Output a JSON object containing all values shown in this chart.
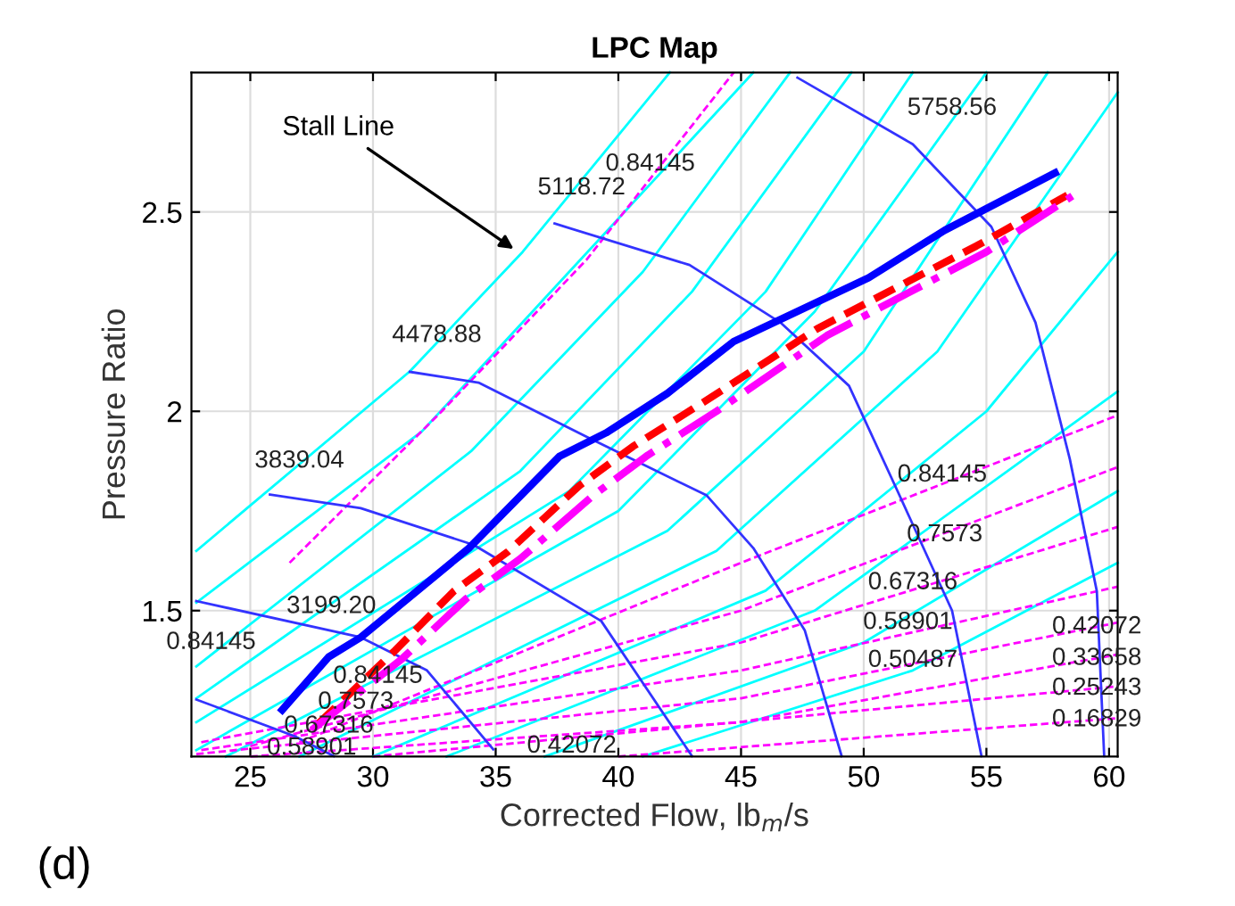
{
  "chart_data": {
    "type": "line",
    "title": "LPC Map",
    "xlabel": "Corrected Flow, lb$_{m}$/s",
    "ylabel": "Pressure Ratio",
    "xlim": [
      22.6,
      60.35
    ],
    "ylim": [
      1.134,
      2.85
    ],
    "xticks": [
      25,
      30,
      35,
      40,
      45,
      50,
      55,
      60
    ],
    "yticks": [
      1.5,
      2,
      2.5
    ],
    "grid": true,
    "legend": false,
    "series": [
      {
        "color": "#00ffff",
        "line_style": "solid",
        "x": [
          22.8,
          31.5,
          36.1,
          42.1
        ],
        "values": [
          1.65,
          2.1,
          2.4,
          2.85
        ]
      },
      {
        "color": "#00ffff",
        "line_style": "solid",
        "x": [
          22.8,
          32,
          38,
          45.5
        ],
        "values": [
          1.52,
          1.95,
          2.35,
          2.85
        ]
      },
      {
        "color": "#00ffff",
        "line_style": "solid",
        "x": [
          22.8,
          34,
          41,
          47
        ],
        "values": [
          1.36,
          1.9,
          2.35,
          2.85
        ]
      },
      {
        "color": "#00ffff",
        "line_style": "solid",
        "x": [
          22.8,
          36,
          43,
          49.5
        ],
        "values": [
          1.28,
          1.85,
          2.3,
          2.85
        ]
      },
      {
        "color": "#00ffff",
        "line_style": "solid",
        "x": [
          22.8,
          38,
          46,
          52
        ],
        "values": [
          1.22,
          1.8,
          2.3,
          2.85
        ]
      },
      {
        "color": "#00ffff",
        "line_style": "solid",
        "x": [
          22.8,
          40,
          48,
          55
        ],
        "values": [
          1.15,
          1.75,
          2.25,
          2.85
        ]
      },
      {
        "color": "#00ffff",
        "line_style": "solid",
        "x": [
          24,
          42,
          50,
          57.5
        ],
        "values": [
          1.134,
          1.7,
          2.15,
          2.85
        ]
      },
      {
        "color": "#00ffff",
        "line_style": "solid",
        "x": [
          27,
          44,
          53,
          60.35
        ],
        "values": [
          1.134,
          1.65,
          2.15,
          2.8
        ]
      },
      {
        "color": "#00ffff",
        "line_style": "solid",
        "x": [
          30,
          46,
          55,
          60.35
        ],
        "values": [
          1.134,
          1.55,
          2.0,
          2.4
        ]
      },
      {
        "color": "#00ffff",
        "line_style": "solid",
        "x": [
          33,
          48,
          60.35
        ],
        "values": [
          1.134,
          1.5,
          2.05
        ]
      },
      {
        "color": "#00ffff",
        "line_style": "solid",
        "x": [
          37,
          50,
          60.35
        ],
        "values": [
          1.134,
          1.42,
          1.8
        ]
      },
      {
        "color": "#00ffff",
        "line_style": "solid",
        "x": [
          41,
          52,
          60.35
        ],
        "values": [
          1.134,
          1.35,
          1.62
        ]
      },
      {
        "color": "#ff00ff",
        "line_style": "dashed",
        "x": [
          26.6,
          32.8,
          38.7,
          44.7
        ],
        "values": [
          1.62,
          2.0,
          2.38,
          2.85
        ]
      },
      {
        "color": "#ff00ff",
        "line_style": "dashed",
        "x": [
          27,
          45,
          60.35
        ],
        "values": [
          1.17,
          1.62,
          1.99
        ]
      },
      {
        "color": "#ff00ff",
        "line_style": "dashed",
        "x": [
          25,
          45,
          60.35
        ],
        "values": [
          1.16,
          1.5,
          1.86
        ]
      },
      {
        "color": "#ff00ff",
        "line_style": "dashed",
        "x": [
          23,
          45,
          60.35
        ],
        "values": [
          1.17,
          1.42,
          1.71
        ]
      },
      {
        "color": "#ff00ff",
        "line_style": "dashed",
        "x": [
          23,
          45,
          60.35
        ],
        "values": [
          1.15,
          1.35,
          1.56
        ]
      },
      {
        "color": "#ff00ff",
        "line_style": "dashed",
        "x": [
          22.8,
          45,
          60.35
        ],
        "values": [
          1.14,
          1.28,
          1.47
        ]
      },
      {
        "color": "#ff00ff",
        "line_style": "dashed",
        "x": [
          25,
          45,
          60.35
        ],
        "values": [
          1.134,
          1.22,
          1.39
        ]
      },
      {
        "color": "#ff00ff",
        "line_style": "dashed",
        "x": [
          30,
          60.35
        ],
        "values": [
          1.134,
          1.31
        ]
      },
      {
        "color": "#ff00ff",
        "line_style": "dashed",
        "x": [
          40,
          60.35
        ],
        "values": [
          1.134,
          1.23
        ]
      },
      {
        "color": "#3333ff",
        "line_style": "solid",
        "x": [
          22.8,
          26.8,
          28.4
        ],
        "values": [
          1.277,
          1.185,
          1.135
        ]
      },
      {
        "color": "#3333ff",
        "line_style": "solid",
        "x": [
          22.8,
          29.5,
          32.2,
          34.9
        ],
        "values": [
          1.524,
          1.433,
          1.35,
          1.152
        ]
      },
      {
        "color": "#3333ff",
        "line_style": "solid",
        "x": [
          25.8,
          29.5,
          34.1,
          39.3,
          43.0
        ],
        "values": [
          1.791,
          1.757,
          1.665,
          1.474,
          1.135
        ]
      },
      {
        "color": "#3333ff",
        "line_style": "solid",
        "x": [
          31.5,
          34.3,
          38.7,
          43.6,
          45.5,
          47.6,
          49.1
        ],
        "values": [
          2.099,
          2.072,
          1.936,
          1.789,
          1.657,
          1.45,
          1.135
        ]
      },
      {
        "color": "#3333ff",
        "line_style": "solid",
        "x": [
          37.4,
          42.9,
          46.6,
          49.4,
          51.4,
          53.6,
          54.8
        ],
        "values": [
          2.471,
          2.367,
          2.223,
          2.064,
          1.797,
          1.5,
          1.135
        ]
      },
      {
        "color": "#3333ff",
        "line_style": "solid",
        "x": [
          47.3,
          52.0,
          55.2,
          57.0,
          58.4,
          59.5,
          59.8
        ],
        "values": [
          2.837,
          2.67,
          2.463,
          2.223,
          1.88,
          1.549,
          1.135
        ]
      },
      {
        "color": "#0000ff",
        "line_style": "solid",
        "x": [
          26.3,
          28.2,
          29.5,
          33.9,
          37.6,
          39.5,
          42.0,
          44.7,
          50.2,
          53.3,
          57.8
        ],
        "values": [
          1.251,
          1.384,
          1.433,
          1.656,
          1.887,
          1.946,
          2.045,
          2.175,
          2.335,
          2.454,
          2.598
        ]
      },
      {
        "color": "#ff0000",
        "line_style": "dashed",
        "x": [
          27.8,
          30.9,
          33.3,
          35.5,
          38.4,
          40.6,
          43.6,
          48.1,
          54.6,
          58.3
        ],
        "values": [
          1.218,
          1.4,
          1.549,
          1.648,
          1.813,
          1.912,
          2.028,
          2.207,
          2.415,
          2.542
        ]
      },
      {
        "color": "#ff00ff",
        "line_style": "dashdot",
        "x": [
          27.5,
          31.2,
          33.8,
          36.0,
          39.0,
          41.2,
          44.0,
          48.5,
          55.0,
          58.5
        ],
        "values": [
          1.2,
          1.38,
          1.53,
          1.63,
          1.79,
          1.89,
          2.0,
          2.19,
          2.4,
          2.54
        ]
      }
    ],
    "annotations": [
      {
        "text": "Stall Line",
        "x": 35.9,
        "y": 2.4
      },
      {
        "text": "5758.56",
        "x": 53.6,
        "y": 2.76
      },
      {
        "text": "5118.72",
        "x": 38.5,
        "y": 2.56
      },
      {
        "text": "4478.88",
        "x": 32.6,
        "y": 2.19
      },
      {
        "text": "3839.04",
        "x": 27.0,
        "y": 1.875
      },
      {
        "text": "3199.20",
        "x": 28.3,
        "y": 1.51
      },
      {
        "text": "0.84145",
        "x": 41.3,
        "y": 2.62
      },
      {
        "text": "0.84145",
        "x": 53.2,
        "y": 1.84
      },
      {
        "text": "0.7573",
        "x": 53.3,
        "y": 1.69
      },
      {
        "text": "0.67316",
        "x": 52.0,
        "y": 1.57
      },
      {
        "text": "0.58901",
        "x": 51.8,
        "y": 1.47
      },
      {
        "text": "0.50487",
        "x": 52.0,
        "y": 1.375
      },
      {
        "text": "0.84145",
        "x": 23.4,
        "y": 1.42
      },
      {
        "text": "0.84145",
        "x": 30.2,
        "y": 1.335
      },
      {
        "text": "0.7573",
        "x": 29.3,
        "y": 1.27
      },
      {
        "text": "0.67316",
        "x": 28.2,
        "y": 1.21
      },
      {
        "text": "0.58901",
        "x": 27.5,
        "y": 1.155
      },
      {
        "text": "0.42072",
        "x": 38.1,
        "y": 1.16
      },
      {
        "text": "0.42072",
        "x": 59.5,
        "y": 1.459
      },
      {
        "text": "0.33658",
        "x": 59.5,
        "y": 1.38
      },
      {
        "text": "0.25243",
        "x": 59.5,
        "y": 1.305
      },
      {
        "text": "0.16829",
        "x": 59.5,
        "y": 1.226
      },
      "(d)"
    ]
  }
}
